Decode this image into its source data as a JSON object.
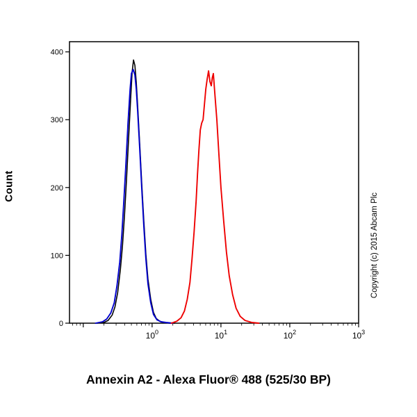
{
  "page": {
    "copyright": "Copyright (c) 2015 Abcam Plc"
  },
  "chart_data": {
    "type": "line",
    "subtype": "flow-cytometry-histogram",
    "title": "",
    "xlabel": "Annexin A2 - Alexa Fluor® 488 (525/30 BP)",
    "ylabel": "Count",
    "x_scale": "log10",
    "xlim_log10": [
      -1.2,
      3
    ],
    "ylim": [
      0,
      415
    ],
    "grid": false,
    "legend": "none",
    "y_ticks": [
      0,
      100,
      200,
      300,
      400
    ],
    "x_ticks": {
      "base": "10",
      "labeled_exponents": [
        0,
        1,
        2,
        3
      ]
    },
    "series": [
      {
        "name": "black",
        "color": "#000000",
        "stroke_width": 1.6,
        "peak": {
          "x_log10": -0.27,
          "count": 388
        },
        "x_log10": [
          -0.8,
          -0.7,
          -0.64,
          -0.58,
          -0.54,
          -0.5,
          -0.46,
          -0.43,
          -0.4,
          -0.37,
          -0.34,
          -0.31,
          -0.29,
          -0.27,
          -0.25,
          -0.23,
          -0.21,
          -0.18,
          -0.15,
          -0.12,
          -0.09,
          -0.06,
          -0.02,
          0.02,
          0.06,
          0.11,
          0.17,
          0.25,
          0.33
        ],
        "y": [
          0,
          1,
          4,
          12,
          24,
          45,
          80,
          115,
          160,
          215,
          275,
          335,
          370,
          388,
          380,
          355,
          320,
          265,
          205,
          150,
          102,
          65,
          35,
          16,
          7,
          3,
          1,
          0,
          0
        ]
      },
      {
        "name": "blue",
        "color": "#0000cc",
        "stroke_width": 1.9,
        "peak": {
          "x_log10": -0.275,
          "count": 374
        },
        "x_log10": [
          -0.82,
          -0.72,
          -0.66,
          -0.6,
          -0.55,
          -0.51,
          -0.47,
          -0.44,
          -0.41,
          -0.38,
          -0.35,
          -0.32,
          -0.3,
          -0.275,
          -0.25,
          -0.23,
          -0.21,
          -0.18,
          -0.15,
          -0.12,
          -0.09,
          -0.06,
          -0.02,
          0.02,
          0.07,
          0.13,
          0.2,
          0.3
        ],
        "y": [
          0,
          2,
          6,
          15,
          30,
          55,
          90,
          130,
          180,
          235,
          295,
          345,
          368,
          374,
          366,
          345,
          312,
          258,
          198,
          142,
          95,
          58,
          30,
          13,
          5,
          2,
          1,
          0
        ]
      },
      {
        "name": "red",
        "color": "#ee0000",
        "stroke_width": 1.9,
        "peak": {
          "x_log10": 0.83,
          "count": 372
        },
        "x_log10": [
          0.28,
          0.36,
          0.42,
          0.47,
          0.51,
          0.55,
          0.58,
          0.61,
          0.64,
          0.66,
          0.68,
          0.7,
          0.72,
          0.74,
          0.76,
          0.78,
          0.8,
          0.82,
          0.84,
          0.86,
          0.875,
          0.89,
          0.91,
          0.94,
          0.97,
          1.0,
          1.04,
          1.08,
          1.12,
          1.17,
          1.22,
          1.28,
          1.35,
          1.45,
          1.55
        ],
        "y": [
          0,
          3,
          8,
          18,
          35,
          60,
          95,
          135,
          180,
          220,
          255,
          285,
          295,
          300,
          322,
          345,
          360,
          372,
          356,
          350,
          362,
          368,
          340,
          300,
          250,
          200,
          150,
          105,
          70,
          42,
          22,
          10,
          4,
          1,
          0
        ]
      }
    ]
  }
}
